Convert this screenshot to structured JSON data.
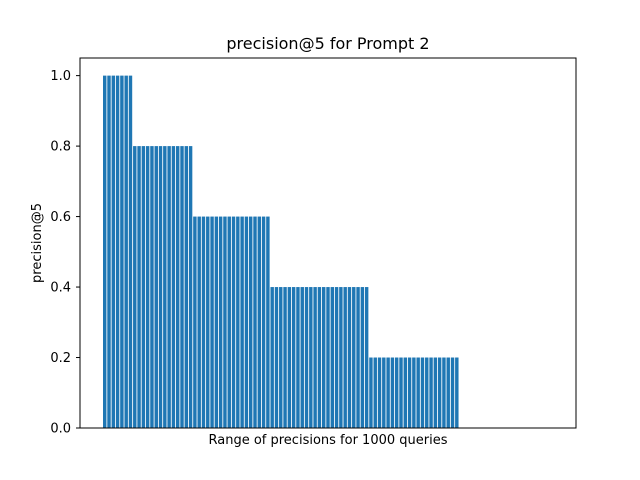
{
  "chart_data": {
    "type": "bar",
    "title": "precision@5 for Prompt 2",
    "xlabel": "Range of precisions for 1000 queries",
    "ylabel": "precision@5",
    "ylim": [
      0,
      1.05
    ],
    "yticks": [
      "0.0",
      "0.2",
      "0.4",
      "0.6",
      "0.8",
      "1.0"
    ],
    "x_tick_labels_shown": false,
    "grid": false,
    "legend": "none",
    "bar_color": "#1f77b4",
    "values": [
      1.0,
      1.0,
      1.0,
      1.0,
      1.0,
      1.0,
      1.0,
      0.8,
      0.8,
      0.8,
      0.8,
      0.8,
      0.8,
      0.8,
      0.8,
      0.8,
      0.8,
      0.8,
      0.8,
      0.8,
      0.8,
      0.6,
      0.6,
      0.6,
      0.6,
      0.6,
      0.6,
      0.6,
      0.6,
      0.6,
      0.6,
      0.6,
      0.6,
      0.6,
      0.6,
      0.6,
      0.6,
      0.6,
      0.6,
      0.4,
      0.4,
      0.4,
      0.4,
      0.4,
      0.4,
      0.4,
      0.4,
      0.4,
      0.4,
      0.4,
      0.4,
      0.4,
      0.4,
      0.4,
      0.4,
      0.4,
      0.4,
      0.4,
      0.4,
      0.4,
      0.4,
      0.4,
      0.2,
      0.2,
      0.2,
      0.2,
      0.2,
      0.2,
      0.2,
      0.2,
      0.2,
      0.2,
      0.2,
      0.2,
      0.2,
      0.2,
      0.2,
      0.2,
      0.2,
      0.2,
      0.2,
      0.2,
      0.2,
      0.0,
      0.0,
      0.0,
      0.0,
      0.0,
      0.0,
      0.0,
      0.0,
      0.0,
      0.0,
      0.0,
      0.0,
      0.0,
      0.0,
      0.0,
      0.0,
      0.0,
      0.0,
      0.0,
      0.0,
      0.0,
      0.0
    ]
  }
}
